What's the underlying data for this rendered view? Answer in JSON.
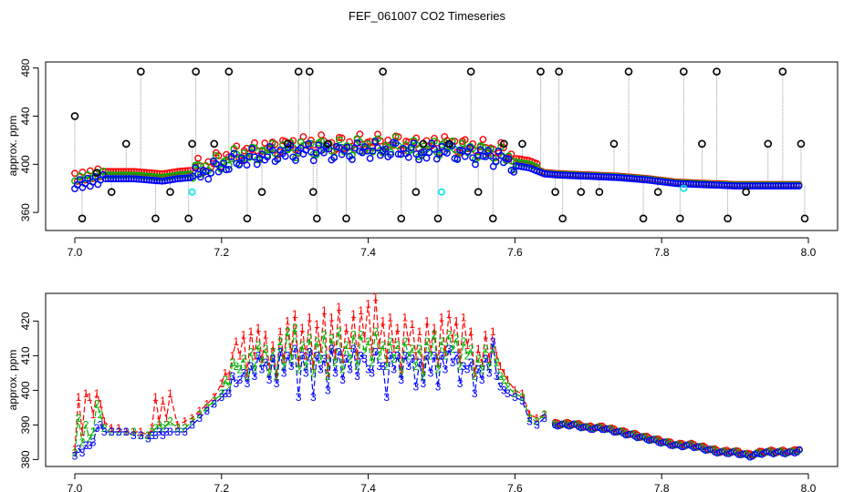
{
  "title": "FEF_061007  CO2 Timeseries",
  "colors": {
    "series1": "#ff0000",
    "series2": "#00b000",
    "series3": "#0000ff",
    "spike": "#000000",
    "cyan": "#00e5ee",
    "gray_line": "#999999"
  },
  "chart_data": [
    {
      "type": "scatter",
      "title": "FEF_061007  CO2 Timeseries",
      "xlabel": "",
      "ylabel": "approx. ppm",
      "xlim": [
        7.0,
        8.0
      ],
      "ylim": [
        345,
        485
      ],
      "xticks": [
        7.0,
        7.2,
        7.4,
        7.6,
        7.8,
        8.0
      ],
      "xtick_labels": [
        "7.0",
        "7.2",
        "7.4",
        "7.6",
        "7.8",
        "8.0"
      ],
      "yticks": [
        360,
        400,
        440,
        480
      ],
      "ytick_labels": [
        "360",
        "400",
        "440",
        "480"
      ],
      "grid": false,
      "baseline_x": [
        7.0,
        7.02,
        7.04,
        7.06,
        7.08,
        7.1,
        7.12,
        7.14,
        7.16,
        7.18,
        7.2,
        7.22,
        7.24,
        7.26,
        7.28,
        7.3,
        7.32,
        7.34,
        7.36,
        7.38,
        7.4,
        7.42,
        7.44,
        7.46,
        7.48,
        7.5,
        7.52,
        7.54,
        7.56,
        7.58,
        7.6,
        7.62,
        7.64,
        7.66,
        7.7,
        7.74,
        7.78,
        7.82,
        7.86,
        7.9,
        7.94,
        7.99
      ],
      "baseline_y": [
        383,
        385,
        388,
        388,
        388,
        387,
        386,
        388,
        389,
        394,
        398,
        403,
        405,
        407,
        409,
        410,
        411,
        411,
        410,
        411,
        412,
        411,
        412,
        410,
        409,
        412,
        410,
        408,
        407,
        405,
        399,
        397,
        392,
        391,
        390,
        389,
        387,
        384,
        383,
        382,
        382,
        382
      ],
      "series_offsets": [
        {
          "name": "1",
          "offset": 6
        },
        {
          "name": "2",
          "offset": 3
        },
        {
          "name": "3",
          "offset": 0
        }
      ],
      "spikes": {
        "x": [
          7.0,
          7.01,
          7.03,
          7.05,
          7.07,
          7.09,
          7.11,
          7.13,
          7.155,
          7.16,
          7.165,
          7.19,
          7.21,
          7.235,
          7.255,
          7.29,
          7.305,
          7.32,
          7.325,
          7.33,
          7.345,
          7.37,
          7.42,
          7.445,
          7.465,
          7.475,
          7.495,
          7.51,
          7.54,
          7.55,
          7.57,
          7.585,
          7.61,
          7.635,
          7.655,
          7.66,
          7.665,
          7.69,
          7.715,
          7.735,
          7.755,
          7.775,
          7.795,
          7.825,
          7.83,
          7.855,
          7.875,
          7.89,
          7.915,
          7.945,
          7.965,
          7.99,
          7.995
        ],
        "y": [
          440,
          355,
          393,
          377,
          417,
          477,
          355,
          377,
          355,
          417,
          477,
          417,
          477,
          355,
          377,
          417,
          477,
          477,
          377,
          355,
          417,
          355,
          477,
          355,
          377,
          417,
          355,
          417,
          477,
          377,
          355,
          417,
          417,
          477,
          377,
          477,
          355,
          377,
          377,
          417,
          477,
          355,
          377,
          355,
          477,
          417,
          477,
          355,
          377,
          417,
          477,
          417,
          355
        ]
      },
      "cyan_points": {
        "x": [
          7.16,
          7.5,
          7.83
        ],
        "y": [
          377,
          377,
          380
        ]
      }
    },
    {
      "type": "line",
      "title": "",
      "xlabel": "",
      "ylabel": "approx. ppm",
      "xlim": [
        7.0,
        8.0
      ],
      "ylim": [
        378,
        428
      ],
      "xticks": [
        7.0,
        7.2,
        7.4,
        7.6,
        7.8,
        8.0
      ],
      "xtick_labels": [
        "7.0",
        "7.2",
        "7.4",
        "7.6",
        "7.8",
        "8.0"
      ],
      "yticks": [
        380,
        390,
        400,
        410,
        420
      ],
      "ytick_labels": [
        "380",
        "390",
        "400",
        "410",
        "420"
      ],
      "grid": false,
      "x": [
        7.0,
        7.005,
        7.01,
        7.015,
        7.02,
        7.025,
        7.03,
        7.035,
        7.04,
        7.05,
        7.06,
        7.07,
        7.08,
        7.09,
        7.1,
        7.105,
        7.11,
        7.115,
        7.12,
        7.125,
        7.13,
        7.14,
        7.15,
        7.16,
        7.17,
        7.18,
        7.19,
        7.2,
        7.205,
        7.21,
        7.215,
        7.22,
        7.225,
        7.23,
        7.235,
        7.24,
        7.245,
        7.25,
        7.255,
        7.26,
        7.265,
        7.27,
        7.275,
        7.28,
        7.285,
        7.29,
        7.295,
        7.3,
        7.305,
        7.31,
        7.315,
        7.32,
        7.325,
        7.33,
        7.335,
        7.34,
        7.345,
        7.35,
        7.355,
        7.36,
        7.365,
        7.37,
        7.375,
        7.38,
        7.385,
        7.39,
        7.395,
        7.4,
        7.405,
        7.41,
        7.415,
        7.42,
        7.425,
        7.43,
        7.435,
        7.44,
        7.445,
        7.45,
        7.455,
        7.46,
        7.465,
        7.47,
        7.475,
        7.48,
        7.485,
        7.49,
        7.495,
        7.5,
        7.505,
        7.51,
        7.515,
        7.52,
        7.525,
        7.53,
        7.535,
        7.54,
        7.545,
        7.55,
        7.555,
        7.56,
        7.565,
        7.57,
        7.575,
        7.58,
        7.585,
        7.59,
        7.6,
        7.61,
        7.62,
        7.63,
        7.64
      ],
      "series": [
        {
          "name": "1",
          "values": [
            383,
            398,
            388,
            399,
            398,
            393,
            399,
            396,
            391,
            389,
            389,
            388,
            388,
            388,
            387,
            389,
            398,
            391,
            397,
            392,
            399,
            390,
            391,
            392,
            394,
            396,
            398,
            402,
            405,
            404,
            410,
            414,
            410,
            416,
            405,
            417,
            410,
            418,
            409,
            416,
            407,
            413,
            404,
            417,
            409,
            420,
            411,
            422,
            408,
            418,
            410,
            421,
            407,
            419,
            412,
            423,
            405,
            421,
            410,
            424,
            409,
            418,
            413,
            422,
            410,
            423,
            415,
            425,
            411,
            427,
            413,
            420,
            409,
            421,
            412,
            418,
            406,
            421,
            414,
            419,
            410,
            417,
            406,
            420,
            412,
            418,
            408,
            421,
            411,
            422,
            415,
            420,
            409,
            421,
            413,
            417,
            405,
            412,
            408,
            416,
            409,
            417,
            410,
            407,
            405,
            403,
            400,
            399,
            393,
            392,
            393
          ]
        },
        {
          "name": "2",
          "values": [
            382,
            392,
            385,
            390,
            386,
            388,
            396,
            393,
            389,
            388,
            388,
            388,
            388,
            387,
            387,
            388,
            389,
            390,
            389,
            390,
            391,
            389,
            389,
            391,
            393,
            395,
            397,
            399,
            403,
            401,
            408,
            407,
            406,
            409,
            404,
            411,
            406,
            413,
            408,
            412,
            405,
            411,
            404,
            414,
            407,
            417,
            409,
            418,
            406,
            413,
            407,
            415,
            405,
            414,
            409,
            416,
            404,
            415,
            408,
            417,
            406,
            413,
            409,
            416,
            407,
            416,
            411,
            414,
            408,
            417,
            410,
            413,
            407,
            414,
            409,
            413,
            405,
            414,
            410,
            412,
            407,
            412,
            404,
            414,
            410,
            416,
            406,
            414,
            410,
            416,
            412,
            415,
            407,
            414,
            410,
            412,
            404,
            409,
            406,
            412,
            407,
            412,
            408,
            404,
            403,
            401,
            399,
            398,
            392,
            391,
            393
          ]
        },
        {
          "name": "3",
          "values": [
            381,
            383,
            382,
            384,
            384,
            385,
            389,
            390,
            388,
            388,
            388,
            388,
            387,
            387,
            386,
            387,
            387,
            388,
            387,
            388,
            388,
            388,
            388,
            390,
            392,
            394,
            396,
            398,
            399,
            399,
            404,
            402,
            403,
            405,
            402,
            407,
            404,
            410,
            406,
            408,
            403,
            409,
            402,
            411,
            405,
            410,
            407,
            412,
            398,
            410,
            405,
            411,
            398,
            410,
            406,
            409,
            400,
            412,
            405,
            411,
            403,
            409,
            406,
            412,
            404,
            410,
            409,
            406,
            405,
            411,
            407,
            407,
            398,
            410,
            406,
            410,
            403,
            410,
            407,
            409,
            401,
            408,
            402,
            410,
            405,
            410,
            401,
            410,
            406,
            412,
            408,
            410,
            402,
            407,
            406,
            408,
            399,
            406,
            403,
            409,
            405,
            414,
            404,
            401,
            400,
            399,
            398,
            397,
            391,
            390,
            392
          ]
        }
      ],
      "tail": {
        "x": [
          7.66,
          7.68,
          7.7,
          7.72,
          7.74,
          7.76,
          7.78,
          7.8,
          7.82,
          7.84,
          7.86,
          7.88,
          7.9,
          7.92,
          7.94,
          7.96,
          7.98,
          7.99
        ],
        "values": [
          390,
          390,
          389,
          389,
          388,
          387,
          386,
          385,
          384,
          384,
          383,
          382,
          382,
          381,
          382,
          382,
          382,
          383
        ]
      }
    }
  ]
}
